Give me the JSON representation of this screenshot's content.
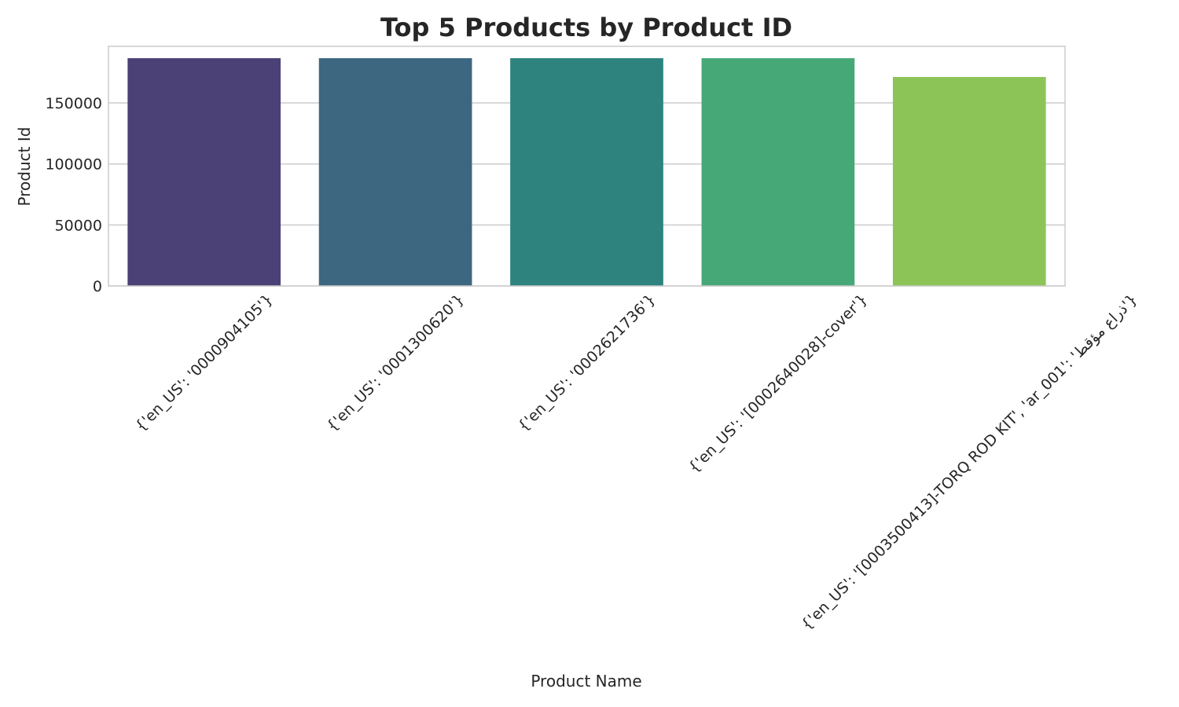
{
  "chart_data": {
    "type": "bar",
    "title": "Top 5 Products by Product ID",
    "x_label": "Product Name",
    "y_label": "Product Id",
    "categories": [
      "{'en_US': '0000904105'}",
      "{'en_US': '0001300620'}",
      "{'en_US': '0002621736'}",
      "{'en_US': '[0002640028]-cover'}",
      "{'en_US': '[0003500413]-TORQ ROD KIT', 'ar_001': 'ذراع مؤقط'}"
    ],
    "values": [
      186700,
      186700,
      186700,
      186700,
      171300
    ],
    "colors": [
      "#4b4177",
      "#3d6680",
      "#2e837e",
      "#47a877",
      "#8dc457"
    ],
    "ylim": [
      0,
      196400
    ],
    "yticks": [
      0,
      50000,
      100000,
      150000
    ],
    "grid": true
  }
}
